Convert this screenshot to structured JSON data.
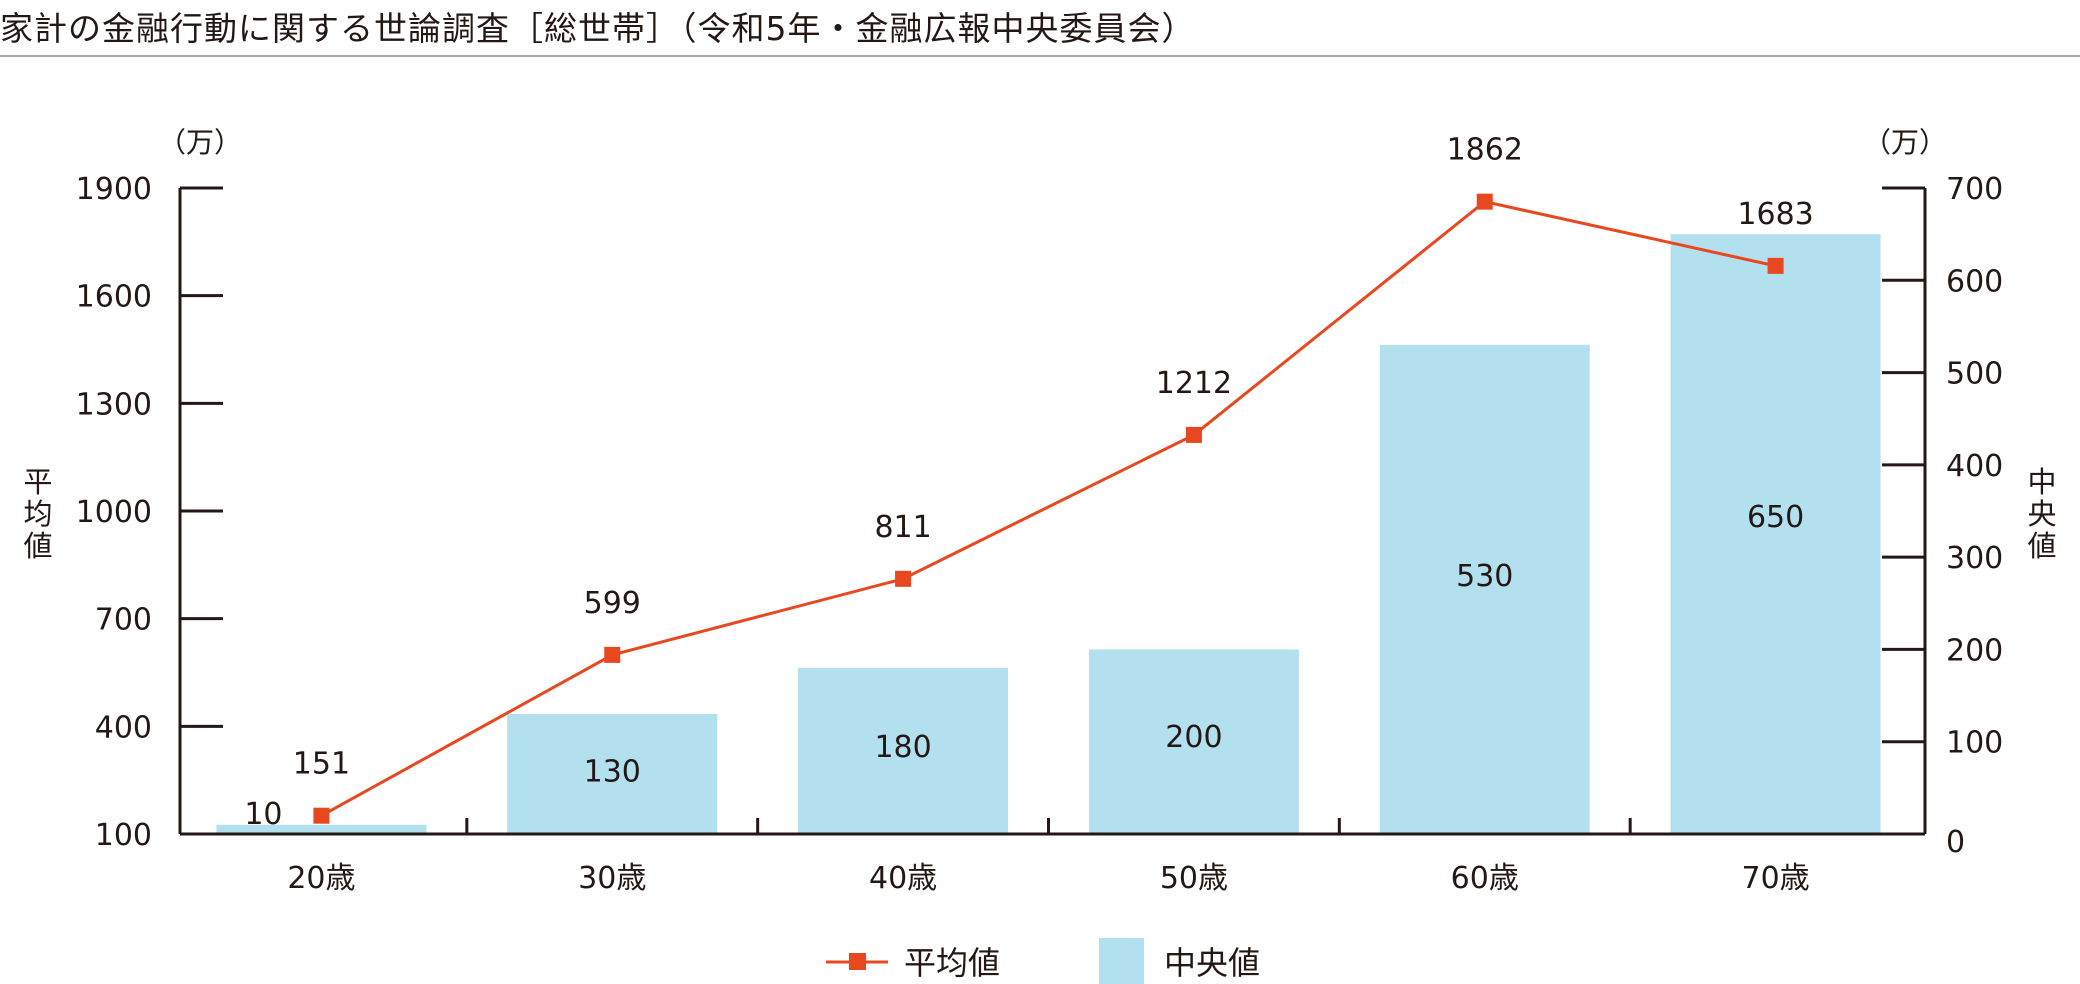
{
  "title": "家計の金融行動に関する世論調査［総世帯］（令和5年・金融広報中央委員会）",
  "colors": {
    "line": "#e8481f",
    "bar": "#b3e0ee",
    "axis": "#231815",
    "rule": "#a9a9a9"
  },
  "axes": {
    "left_unit": "（万）",
    "right_unit": "（万）",
    "left_title": "平均値",
    "right_title": "中央値",
    "left_ticks": [
      "1900",
      "1600",
      "1300",
      "1000",
      "700",
      "400",
      "100"
    ],
    "right_ticks": [
      "700",
      "600",
      "500",
      "400",
      "300",
      "200",
      "100",
      "0"
    ]
  },
  "legend": {
    "line_label": "平均値",
    "bar_label": "中央値"
  },
  "chart_data": {
    "type": "bar+line",
    "title": "家計の金融行動に関する世論調査［総世帯］（令和5年・金融広報中央委員会）",
    "categories": [
      "20歳",
      "30歳",
      "40歳",
      "50歳",
      "60歳",
      "70歳"
    ],
    "series": [
      {
        "name": "平均値",
        "type": "line",
        "axis": "left",
        "values": [
          151,
          599,
          811,
          1212,
          1862,
          1683
        ],
        "color": "#e8481f"
      },
      {
        "name": "中央値",
        "type": "bar",
        "axis": "right",
        "values": [
          10,
          130,
          180,
          200,
          530,
          650
        ],
        "color": "#b3e0ee"
      }
    ],
    "xlabel": "",
    "ylabel_left": "平均値（万）",
    "ylabel_right": "中央値（万）",
    "ylim_left": [
      100,
      1900
    ],
    "ylim_right": [
      0,
      700
    ],
    "yticks_left": [
      100,
      400,
      700,
      1000,
      1300,
      1600,
      1900
    ],
    "yticks_right": [
      0,
      100,
      200,
      300,
      400,
      500,
      600,
      700
    ],
    "grid": false,
    "legend_position": "bottom-center"
  }
}
